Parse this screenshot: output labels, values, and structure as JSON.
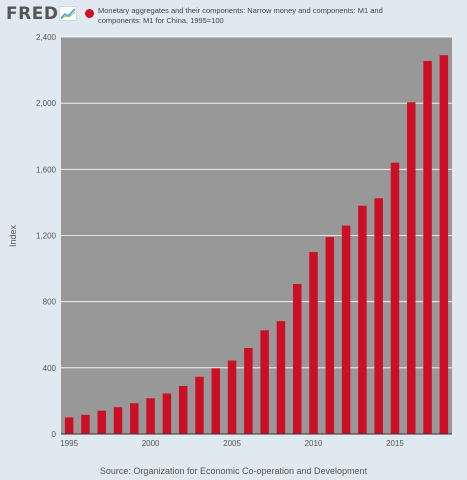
{
  "header": {
    "logo_text": "FRED",
    "legend_label": "Monetary aggregates and their components: Narrow money and components: M1 and components: M1 for China, 1995=100"
  },
  "footer": {
    "source": "Source: Organization for Economic Co-operation and Development"
  },
  "chart_data": {
    "type": "bar",
    "ylabel": "Index",
    "ylim": [
      0,
      2400
    ],
    "yticks": [
      0,
      400,
      800,
      1200,
      1600,
      2000,
      2400
    ],
    "ytick_labels": [
      "0",
      "400",
      "800",
      "1,200",
      "1,600",
      "2,000",
      "2,400"
    ],
    "xticks": [
      1995,
      2000,
      2005,
      2010,
      2015
    ],
    "xtick_labels": [
      "1995",
      "2000",
      "2005",
      "2010",
      "2015"
    ],
    "categories": [
      1995,
      1996,
      1997,
      1998,
      1999,
      2000,
      2001,
      2002,
      2003,
      2004,
      2005,
      2006,
      2007,
      2008,
      2009,
      2010,
      2011,
      2012,
      2013,
      2014,
      2015,
      2016,
      2017,
      2018
    ],
    "series": [
      {
        "name": "Monetary aggregates and their components: Narrow money and components: M1 and components: M1 for China, 1995=100",
        "color": "#cc0f24",
        "values": [
          100,
          116,
          141,
          162,
          186,
          216,
          245,
          290,
          346,
          397,
          444,
          520,
          627,
          682,
          907,
          1100,
          1190,
          1260,
          1380,
          1425,
          1640,
          2005,
          2255,
          2290
        ]
      }
    ],
    "colors": {
      "plot_bg": "#989898",
      "grid": "#ffffff",
      "page_bg": "#e1e9f0"
    },
    "grid": true
  }
}
